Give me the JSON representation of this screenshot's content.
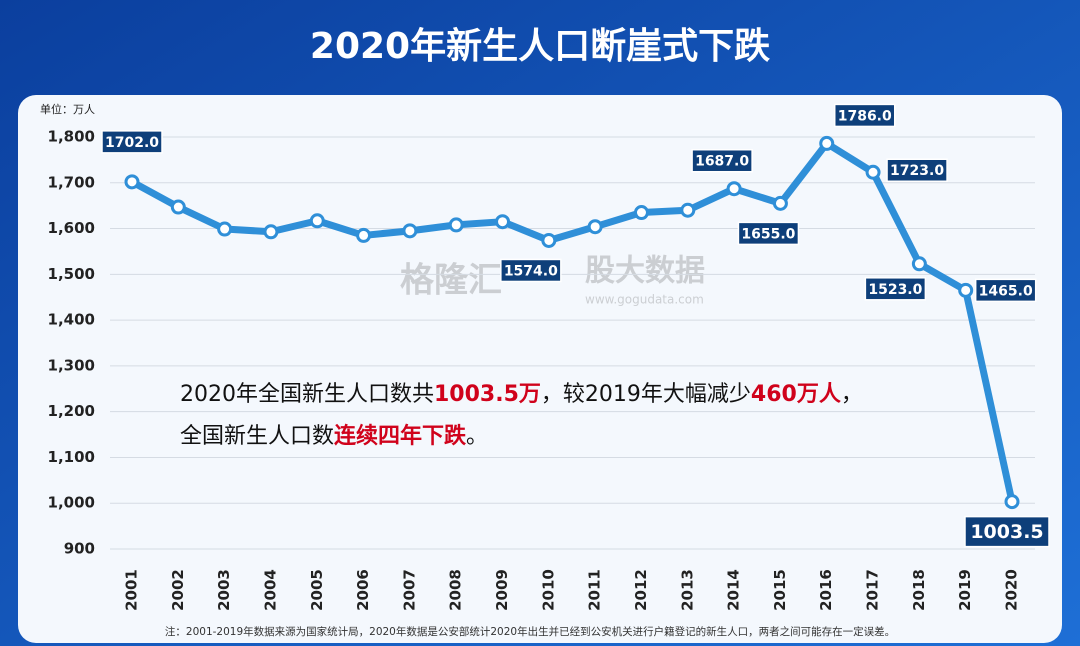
{
  "chart_data": {
    "type": "line",
    "title": "2020年新生人口断崖式下跌",
    "unit_label": "单位：万人",
    "categories": [
      "2001",
      "2002",
      "2003",
      "2004",
      "2005",
      "2006",
      "2007",
      "2008",
      "2009",
      "2010",
      "2011",
      "2012",
      "2013",
      "2014",
      "2015",
      "2016",
      "2017",
      "2018",
      "2019",
      "2020"
    ],
    "series": [
      {
        "name": "新生人口",
        "color": "#2f8fd8",
        "values": [
          1702,
          1647,
          1599,
          1593,
          1617,
          1585,
          1595,
          1608,
          1615,
          1574,
          1604,
          1635,
          1640,
          1687,
          1655,
          1786,
          1723,
          1523,
          1465,
          1003.5
        ],
        "value_labels": [
          "1702.0",
          null,
          null,
          null,
          null,
          null,
          null,
          null,
          null,
          "1574.0",
          null,
          null,
          null,
          "1687.0",
          "1655.0",
          "1786.0",
          "1723.0",
          "1523.0",
          "1465.0",
          "1003.5"
        ]
      }
    ],
    "ylim": [
      900,
      1800
    ],
    "yticks": [
      900,
      {
        "value": 1000,
        "label": "1,000"
      },
      {
        "value": 1100,
        "label": "1,100"
      },
      {
        "value": 1200,
        "label": "1,200"
      },
      {
        "value": 1300,
        "label": "1,300"
      },
      {
        "value": 1400,
        "label": "1,400"
      },
      {
        "value": 1500,
        "label": "1,500"
      },
      {
        "value": 1600,
        "label": "1,600"
      },
      {
        "value": 1700,
        "label": "1,700"
      },
      {
        "value": 1800,
        "label": "1,800"
      }
    ],
    "grid": true,
    "highlight_color": "#d0021b",
    "annotation": [
      [
        {
          "text": "2020年全国新生人口数共",
          "highlight": false
        },
        {
          "text": "1003.5万",
          "highlight": true
        },
        {
          "text": "，较2019年大幅减少",
          "highlight": false
        },
        {
          "text": "460万人",
          "highlight": true
        },
        {
          "text": "，",
          "highlight": false
        }
      ],
      [
        {
          "text": "全国新生人口数",
          "highlight": false
        },
        {
          "text": "连续四年下跌",
          "highlight": true
        },
        {
          "text": "。",
          "highlight": false
        }
      ]
    ],
    "watermark": [
      "格隆汇",
      "股大数据",
      "www.gogudata.com"
    ],
    "footnote": "注：2001-2019年数据来源为国家统计局，2020年数据是公安部统计2020年出生并已经到公安机关进行户籍登记的新生人口，两者之间可能存在一定误差。"
  }
}
